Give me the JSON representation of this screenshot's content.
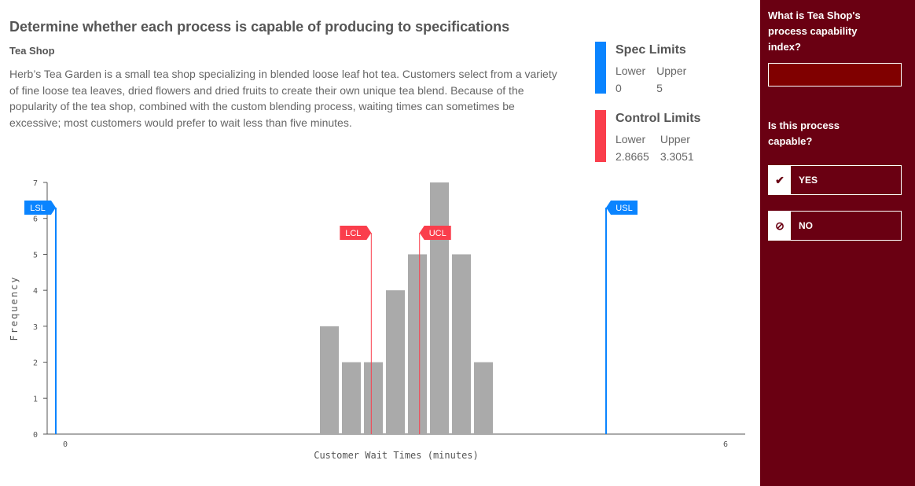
{
  "title": "Determine whether each process is capable of producing to specifications",
  "subtitle": "Tea Shop",
  "description": "Herb’s Tea Garden is a small tea shop specializing in blended loose leaf hot tea. Customers select from a variety of fine loose tea leaves, dried flowers and dried fruits to create their own unique tea blend. Because of the popularity of the tea shop, combined with the custom blending process, waiting times can sometimes be excessive; most customers would prefer to wait less than five minutes.",
  "spec_limits": {
    "title": "Spec Limits",
    "lower_label": "Lower",
    "upper_label": "Upper",
    "lower": "0",
    "upper": "5",
    "color": "#0a84ff"
  },
  "control_limits": {
    "title": "Control Limits",
    "lower_label": "Lower",
    "upper_label": "Upper",
    "lower": "2.8665",
    "upper": "3.3051",
    "color": "#fa3e4c"
  },
  "sidebar": {
    "q1": "What is Tea Shop's process capability index?",
    "answer_value": "",
    "q2": "Is this process capable?",
    "yes_label": "YES",
    "no_label": "NO",
    "yes_icon": "check-icon",
    "no_icon": "ban-icon",
    "bg_color": "#6a0012"
  },
  "chart_data": {
    "type": "bar",
    "xlabel": "Customer Wait Times (minutes)",
    "ylabel": "Frequency",
    "xlim": [
      0,
      6
    ],
    "ylim": [
      0,
      7
    ],
    "x_ticks": [
      "0",
      "6"
    ],
    "y_ticks": [
      "0",
      "1",
      "2",
      "3",
      "4",
      "5",
      "6",
      "7"
    ],
    "bin_width": 0.2,
    "bin_starts": [
      2.4,
      2.6,
      2.8,
      3.0,
      3.2,
      3.4,
      3.6,
      3.8
    ],
    "values": [
      3,
      2,
      2,
      4,
      5,
      7,
      5,
      2
    ],
    "bar_color": "#aaaaaa",
    "lines": [
      {
        "label": "LSL",
        "value": 0,
        "color": "#0a84ff"
      },
      {
        "label": "USL",
        "value": 5,
        "color": "#0a84ff"
      },
      {
        "label": "LCL",
        "value": 2.8665,
        "color": "#fa3e4c"
      },
      {
        "label": "UCL",
        "value": 3.3051,
        "color": "#fa3e4c"
      }
    ]
  }
}
